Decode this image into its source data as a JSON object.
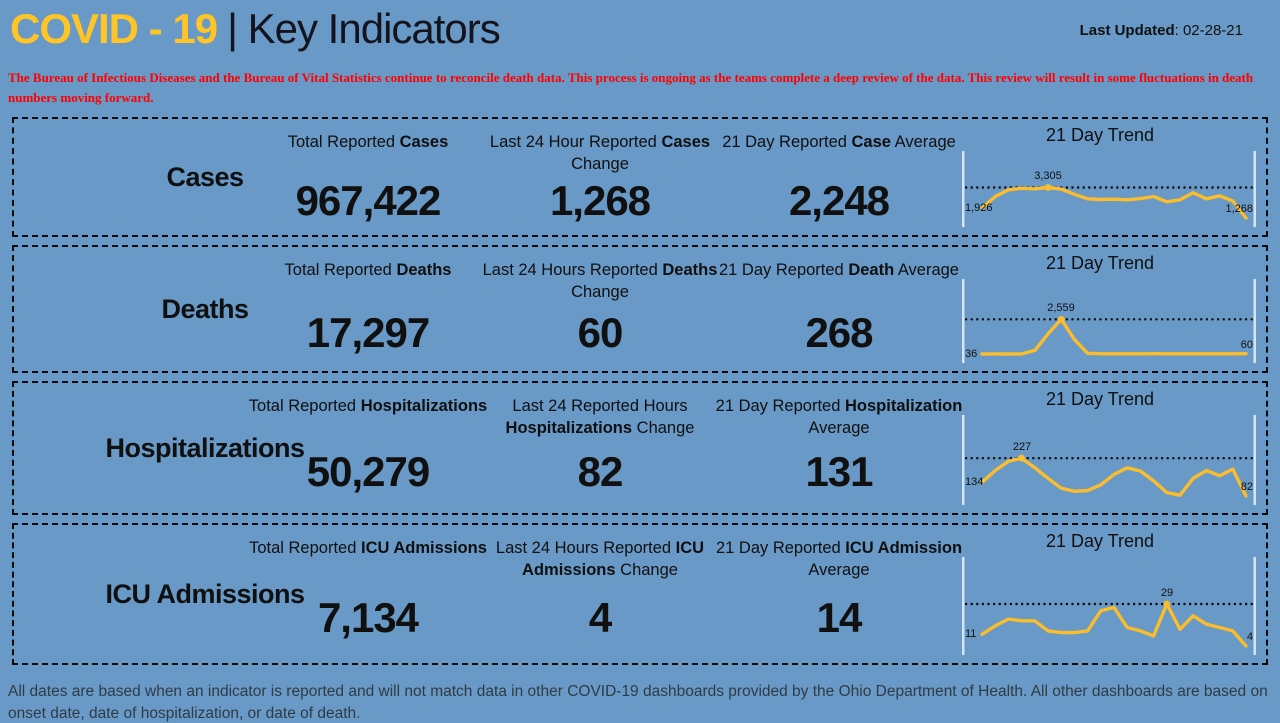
{
  "header": {
    "brand": "COVID - 19",
    "rest": "| Key Indicators",
    "last_updated_label": "Last Updated",
    "last_updated_value": ": 02-28-21"
  },
  "disclaimer": "The Bureau of Infectious Diseases and the Bureau of Vital Statistics continue to reconcile death data. This process is ongoing as the teams complete a deep review of the data. This review will result in some fluctuations in death numbers moving forward.",
  "rows": [
    {
      "label": "Cases",
      "trend_title": "21 Day Trend",
      "stats": [
        {
          "pre": "Total Reported ",
          "bold": "Cases",
          "post": "",
          "value": "967,422"
        },
        {
          "pre": "Last 24 Hour Reported ",
          "bold": "Cases",
          "post": " Change",
          "value": "1,268"
        },
        {
          "pre": "21 Day Reported ",
          "bold": "Case",
          "post": " Average",
          "value": "2,248"
        }
      ]
    },
    {
      "label": "Deaths",
      "trend_title": "21 Day Trend",
      "stats": [
        {
          "pre": "Total Reported ",
          "bold": "Deaths",
          "post": "",
          "value": "17,297"
        },
        {
          "pre": "Last 24 Hours Reported ",
          "bold": "Deaths",
          "post": " Change",
          "value": "60"
        },
        {
          "pre": "21 Day Reported ",
          "bold": "Death",
          "post": " Average",
          "value": "268"
        }
      ]
    },
    {
      "label": "Hospitalizations",
      "trend_title": "21 Day Trend",
      "stats": [
        {
          "pre": "Total Reported ",
          "bold": "Hospitalizations",
          "post": "",
          "value": "50,279"
        },
        {
          "pre": "Last 24 Reported Hours ",
          "bold": "Hospitalizations",
          "post": " Change",
          "value": "82"
        },
        {
          "pre": "21 Day Reported ",
          "bold": "Hospitalization",
          "post": " Average",
          "value": "131"
        }
      ]
    },
    {
      "label": "ICU Admissions",
      "trend_title": "21 Day Trend",
      "stats": [
        {
          "pre": "Total Reported ",
          "bold": "ICU Admissions",
          "post": "",
          "value": "7,134"
        },
        {
          "pre": "Last 24 Hours Reported ",
          "bold": "ICU Admissions",
          "post": " Change",
          "value": "4"
        },
        {
          "pre": "21 Day Reported ",
          "bold": "ICU Admission",
          "post": " Average",
          "value": "14"
        }
      ]
    }
  ],
  "footer": "All dates are based when an indicator is reported and will not match data in other COVID-19 dashboards provided by the Ohio Department of Health. All other dashboards are based on onset date, date of hospitalization, or date of death.",
  "colors": {
    "background": "#6999C6",
    "accent_yellow": "#FFC425",
    "sparkline_gold": "#FBBD2C",
    "disclaimer_red": "#FE0000",
    "border_black": "#0B0B0B",
    "axis_bar": "#D6E4F0",
    "footer_text": "#2F3B45"
  },
  "chart_data": [
    {
      "type": "line",
      "name": "cases-21-day-trend",
      "title": "21 Day Trend",
      "color": "#FBBD2C",
      "values": [
        1926,
        2700,
        3150,
        3250,
        3220,
        3305,
        3200,
        2850,
        2550,
        2500,
        2520,
        2480,
        2560,
        2700,
        2350,
        2480,
        2950,
        2550,
        2750,
        2400,
        1268
      ],
      "start_label": "1,926",
      "peak_label": "3,305",
      "end_label": "1,268",
      "dotted_reference": "peak"
    },
    {
      "type": "line",
      "name": "deaths-21-day-trend",
      "title": "21 Day Trend",
      "color": "#FBBD2C",
      "values": [
        36,
        40,
        38,
        42,
        300,
        1500,
        2559,
        1100,
        90,
        55,
        50,
        52,
        48,
        55,
        52,
        50,
        54,
        52,
        50,
        53,
        60
      ],
      "start_label": "36",
      "peak_label": "2,559",
      "end_label": "60",
      "dotted_reference": "peak"
    },
    {
      "type": "line",
      "name": "hospitalizations-21-day-trend",
      "title": "21 Day Trend",
      "color": "#FBBD2C",
      "values": [
        134,
        180,
        215,
        227,
        190,
        150,
        112,
        100,
        103,
        125,
        165,
        190,
        178,
        140,
        95,
        85,
        150,
        180,
        160,
        185,
        82
      ],
      "start_label": "134",
      "peak_label": "227",
      "end_label": "82",
      "dotted_reference": "peak"
    },
    {
      "type": "line",
      "name": "icu-admissions-21-day-trend",
      "title": "21 Day Trend",
      "color": "#FBBD2C",
      "values": [
        11,
        16,
        20,
        19,
        19,
        13,
        12,
        12,
        13,
        25,
        27,
        15,
        13,
        10,
        29,
        14,
        22,
        17,
        15,
        13,
        4
      ],
      "start_label": "11",
      "peak_label": "29",
      "end_label": "4",
      "dotted_reference": "peak"
    }
  ]
}
